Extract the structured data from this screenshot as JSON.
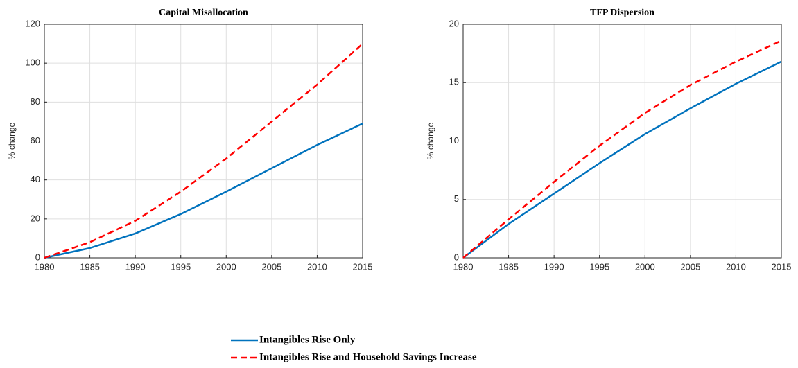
{
  "chart_data": [
    {
      "type": "line",
      "title": "Capital Misallocation",
      "ylabel": "% change",
      "x": [
        1980,
        1985,
        1990,
        1995,
        2000,
        2005,
        2010,
        2015
      ],
      "series": [
        {
          "name": "Intangibles Rise Only",
          "color": "#0072bd",
          "dash": false,
          "values": [
            0,
            5,
            12.5,
            22.5,
            34,
            46,
            58,
            69
          ]
        },
        {
          "name": "Intangibles Rise and Household Savings Increase",
          "color": "#ff0000",
          "dash": true,
          "values": [
            0,
            8,
            19,
            34,
            51,
            70,
            89,
            110
          ]
        }
      ],
      "xlim": [
        1980,
        2015
      ],
      "xticks": [
        1980,
        1985,
        1990,
        1995,
        2000,
        2005,
        2010,
        2015
      ],
      "ylim": [
        0,
        120
      ],
      "yticks": [
        0,
        20,
        40,
        60,
        80,
        100,
        120
      ],
      "grid": true
    },
    {
      "type": "line",
      "title": "TFP Dispersion",
      "ylabel": "% change",
      "x": [
        1980,
        1985,
        1990,
        1995,
        2000,
        2005,
        2010,
        2015
      ],
      "series": [
        {
          "color": "#0072bd",
          "dash": false,
          "values": [
            0,
            2.9,
            5.5,
            8.1,
            10.6,
            12.8,
            14.9,
            16.8
          ]
        },
        {
          "color": "#ff0000",
          "dash": true,
          "values": [
            0,
            3.3,
            6.5,
            9.6,
            12.4,
            14.8,
            16.8,
            18.6
          ]
        }
      ],
      "xlim": [
        1980,
        2015
      ],
      "xticks": [
        1980,
        1985,
        1990,
        1995,
        2000,
        2005,
        2010,
        2015
      ],
      "ylim": [
        0,
        20
      ],
      "yticks": [
        0,
        5,
        10,
        15,
        20
      ],
      "grid": true
    }
  ]
}
